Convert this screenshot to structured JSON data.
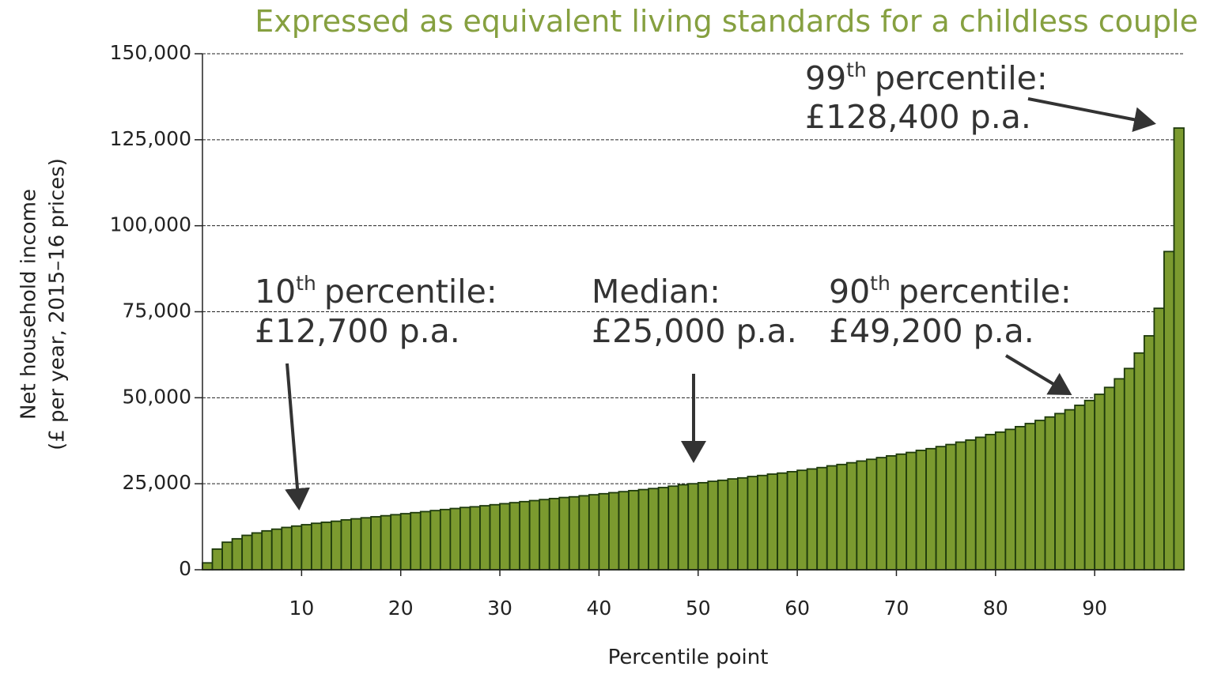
{
  "chart_data": {
    "type": "bar",
    "title": "Expressed as equivalent living standards for a childless couple",
    "x_label": "Percentile point",
    "y_label": [
      "Net household income",
      "(£ per year, 2015–16 prices)"
    ],
    "color": "#7b9a2f",
    "edge_color": "#1e3a0c",
    "grid": true,
    "x": [
      1,
      2,
      3,
      4,
      5,
      6,
      7,
      8,
      9,
      10,
      11,
      12,
      13,
      14,
      15,
      16,
      17,
      18,
      19,
      20,
      21,
      22,
      23,
      24,
      25,
      26,
      27,
      28,
      29,
      30,
      31,
      32,
      33,
      34,
      35,
      36,
      37,
      38,
      39,
      40,
      41,
      42,
      43,
      44,
      45,
      46,
      47,
      48,
      49,
      50,
      51,
      52,
      53,
      54,
      55,
      56,
      57,
      58,
      59,
      60,
      61,
      62,
      63,
      64,
      65,
      66,
      67,
      68,
      69,
      70,
      71,
      72,
      73,
      74,
      75,
      76,
      77,
      78,
      79,
      80,
      81,
      82,
      83,
      84,
      85,
      86,
      87,
      88,
      89,
      90,
      91,
      92,
      93,
      94,
      95,
      96,
      97,
      98,
      99
    ],
    "values": [
      2000,
      6000,
      8000,
      9000,
      10000,
      10700,
      11300,
      11800,
      12300,
      12700,
      13100,
      13500,
      13800,
      14100,
      14500,
      14800,
      15100,
      15400,
      15700,
      16000,
      16300,
      16600,
      16900,
      17200,
      17500,
      17800,
      18100,
      18300,
      18600,
      18900,
      19200,
      19500,
      19800,
      20100,
      20400,
      20700,
      21000,
      21200,
      21500,
      21800,
      22100,
      22400,
      22700,
      23000,
      23300,
      23600,
      23900,
      24300,
      24700,
      25000,
      25300,
      25700,
      26000,
      26400,
      26700,
      27100,
      27400,
      27800,
      28100,
      28500,
      28900,
      29300,
      29700,
      30200,
      30600,
      31100,
      31600,
      32100,
      32600,
      33100,
      33600,
      34100,
      34700,
      35200,
      35800,
      36400,
      37100,
      37700,
      38500,
      39300,
      40000,
      40800,
      41600,
      42500,
      43400,
      44400,
      45400,
      46500,
      47800,
      49200,
      51000,
      53000,
      55500,
      58500,
      63000,
      68000,
      76000,
      92500,
      128400
    ],
    "xlim": [
      0,
      99
    ],
    "xticks": [
      10,
      20,
      30,
      40,
      50,
      60,
      70,
      80,
      90
    ],
    "ylim": [
      0,
      150000
    ],
    "yticks": [
      0,
      {
        "value": 25000,
        "label": "25,000"
      },
      {
        "value": 50000,
        "label": "50,000"
      },
      {
        "value": 75000,
        "label": "75,000"
      },
      {
        "value": 100000,
        "label": "100,000"
      },
      {
        "value": 125000,
        "label": "125,000"
      },
      {
        "value": 150000,
        "label": "150,000"
      }
    ],
    "annotations": [
      {
        "ordinal": "10",
        "suffix": "th",
        "label": "percentile:",
        "amount": "£12,700 p.a."
      },
      {
        "label": "Median:",
        "amount": "£25,000 p.a."
      },
      {
        "ordinal": "90",
        "suffix": "th",
        "label": "percentile:",
        "amount": "£49,200 p.a."
      },
      {
        "ordinal": "99",
        "suffix": "th",
        "label": "percentile:",
        "amount": "£128,400 p.a."
      }
    ]
  }
}
